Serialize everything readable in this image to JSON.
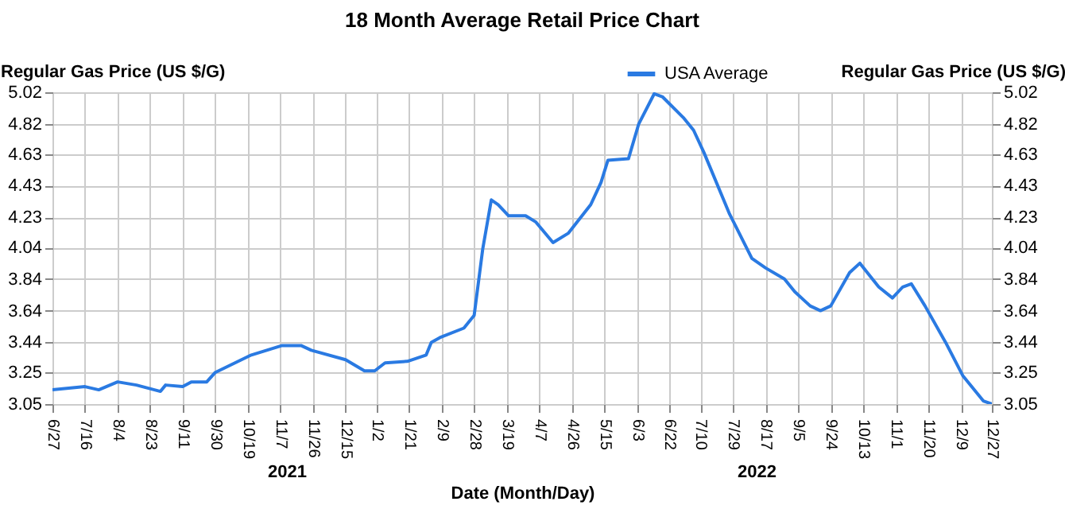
{
  "chart_data": {
    "type": "line",
    "title": "18 Month Average Retail Price Chart",
    "xlabel": "Date (Month/Day)",
    "ylabel": "Regular Gas Price (US $/G)",
    "y2label": "Regular Gas Price (US $/G)",
    "annotations": [
      "2021",
      "2022"
    ],
    "x": [
      "2021-06-27",
      "2021-07-16",
      "2021-07-24",
      "2021-08-04",
      "2021-08-15",
      "2021-08-29",
      "2021-09-01",
      "2021-09-11",
      "2021-09-16",
      "2021-09-25",
      "2021-09-30",
      "2021-10-21",
      "2021-11-08",
      "2021-11-19",
      "2021-11-25",
      "2021-12-15",
      "2021-12-26",
      "2022-01-01",
      "2022-01-07",
      "2022-01-20",
      "2022-01-31",
      "2022-02-03",
      "2022-02-08",
      "2022-02-22",
      "2022-02-28",
      "2022-03-05",
      "2022-03-10",
      "2022-03-14",
      "2022-03-20",
      "2022-03-30",
      "2022-04-05",
      "2022-04-15",
      "2022-04-24",
      "2022-05-07",
      "2022-05-13",
      "2022-05-17",
      "2022-05-29",
      "2022-06-04",
      "2022-06-13",
      "2022-06-18",
      "2022-06-30",
      "2022-07-06",
      "2022-07-12",
      "2022-07-27",
      "2022-08-09",
      "2022-08-17",
      "2022-08-28",
      "2022-09-03",
      "2022-09-12",
      "2022-09-18",
      "2022-09-24",
      "2022-10-05",
      "2022-10-11",
      "2022-10-22",
      "2022-10-30",
      "2022-11-05",
      "2022-11-10",
      "2022-11-18",
      "2022-11-30",
      "2022-12-10",
      "2022-12-22",
      "2022-12-27"
    ],
    "series": [
      {
        "name": "USA Average",
        "color": "#2a7ae2",
        "values": [
          3.14,
          3.16,
          3.14,
          3.19,
          3.17,
          3.13,
          3.17,
          3.16,
          3.19,
          3.19,
          3.25,
          3.36,
          3.42,
          3.42,
          3.39,
          3.33,
          3.26,
          3.26,
          3.31,
          3.32,
          3.36,
          3.44,
          3.47,
          3.53,
          3.61,
          4.03,
          4.34,
          4.31,
          4.24,
          4.24,
          4.2,
          4.07,
          4.13,
          4.31,
          4.45,
          4.59,
          4.6,
          4.82,
          5.01,
          4.99,
          4.86,
          4.78,
          4.64,
          4.25,
          3.97,
          3.91,
          3.84,
          3.76,
          3.67,
          3.64,
          3.67,
          3.88,
          3.94,
          3.79,
          3.72,
          3.79,
          3.81,
          3.67,
          3.44,
          3.23,
          3.07,
          3.05
        ]
      }
    ],
    "xlim": [
      "2021-06-27",
      "2022-12-27"
    ],
    "xticks": [
      {
        "value": "2021-06-27",
        "label": "6/27"
      },
      {
        "value": "2021-07-16",
        "label": "7/16"
      },
      {
        "value": "2021-08-04",
        "label": "8/4"
      },
      {
        "value": "2021-08-23",
        "label": "8/23"
      },
      {
        "value": "2021-09-11",
        "label": "9/11"
      },
      {
        "value": "2021-09-30",
        "label": "9/30"
      },
      {
        "value": "2021-10-19",
        "label": "10/19"
      },
      {
        "value": "2021-11-07",
        "label": "11/7"
      },
      {
        "value": "2021-11-26",
        "label": "11/26"
      },
      {
        "value": "2021-12-15",
        "label": "12/15"
      },
      {
        "value": "2022-01-02",
        "label": "1/2"
      },
      {
        "value": "2022-01-21",
        "label": "1/21"
      },
      {
        "value": "2022-02-09",
        "label": "2/9"
      },
      {
        "value": "2022-02-28",
        "label": "2/28"
      },
      {
        "value": "2022-03-19",
        "label": "3/19"
      },
      {
        "value": "2022-04-07",
        "label": "4/7"
      },
      {
        "value": "2022-04-26",
        "label": "4/26"
      },
      {
        "value": "2022-05-15",
        "label": "5/15"
      },
      {
        "value": "2022-06-03",
        "label": "6/3"
      },
      {
        "value": "2022-06-22",
        "label": "6/22"
      },
      {
        "value": "2022-07-10",
        "label": "7/10"
      },
      {
        "value": "2022-07-29",
        "label": "7/29"
      },
      {
        "value": "2022-08-17",
        "label": "8/17"
      },
      {
        "value": "2022-09-05",
        "label": "9/5"
      },
      {
        "value": "2022-09-24",
        "label": "9/24"
      },
      {
        "value": "2022-10-13",
        "label": "10/13"
      },
      {
        "value": "2022-11-01",
        "label": "11/1"
      },
      {
        "value": "2022-11-20",
        "label": "11/20"
      },
      {
        "value": "2022-12-09",
        "label": "12/9"
      },
      {
        "value": "2022-12-27",
        "label": "12/27"
      }
    ],
    "ylim": [
      3.05,
      5.02
    ],
    "yticks": [
      3.05,
      3.25,
      3.44,
      3.64,
      3.84,
      4.04,
      4.23,
      4.43,
      4.63,
      4.82,
      5.02
    ],
    "y2lim": [
      3.05,
      5.02
    ],
    "y2ticks": [
      3.05,
      3.25,
      3.44,
      3.64,
      3.84,
      4.04,
      4.23,
      4.43,
      4.63,
      4.82,
      5.02
    ],
    "grid": true,
    "legend": "top"
  }
}
